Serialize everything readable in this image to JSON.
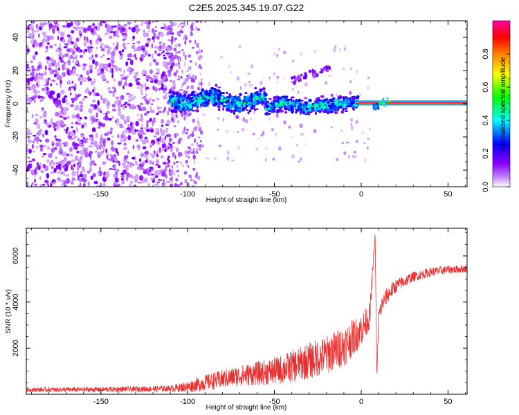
{
  "figure": {
    "title": "C2E5.2025.345.19.07.G22"
  },
  "chart_data": [
    {
      "type": "heatmap",
      "xlabel": "Height of straight line (km)",
      "ylabel": "Frequency (Hz)",
      "xlim": [
        -193,
        61
      ],
      "ylim": [
        -50,
        50
      ],
      "xticks": [
        -150,
        -100,
        -50,
        0,
        50
      ],
      "yticks": [
        -40,
        -20,
        0,
        20,
        40
      ],
      "xtick_labels": [
        "-150",
        "-100",
        "-50",
        "0",
        "50"
      ],
      "ytick_labels": [
        "-40",
        "-20",
        "0",
        "20",
        "40"
      ],
      "colorbar": {
        "label": "Normalized spectral amplitude",
        "range": [
          0,
          1
        ],
        "ticks": [
          0,
          0.2,
          0.4,
          0.6,
          0.8
        ],
        "tick_labels": [
          "0.0",
          "0.2",
          "0.4",
          "0.6",
          "0.8"
        ],
        "colormap": [
          "#ffffff",
          "#8a00ff",
          "#0000ff",
          "#00ffff",
          "#00ff00",
          "#ffff00",
          "#ff8000",
          "#ff0000",
          "#ff00a0"
        ]
      },
      "features": [
        {
          "name": "noise",
          "x_range": [
            -193,
            -108
          ],
          "freq_range": [
            -50,
            50
          ],
          "amplitude": 0.1
        },
        {
          "name": "scattered",
          "x_range": [
            -108,
            -95
          ],
          "freq_range": [
            -50,
            50
          ],
          "amplitude": 0.05
        },
        {
          "name": "signal-band-start",
          "x_range": [
            -110,
            -10
          ],
          "freq_center": 0,
          "amplitude": 0.35
        },
        {
          "name": "harmonic",
          "x_range": [
            -40,
            -18
          ],
          "freq": [
            14,
            22
          ],
          "amplitude": 0.15
        },
        {
          "name": "steady-line",
          "x_range": [
            -2,
            61
          ],
          "freq_center": 0.5,
          "amplitude": 0.95
        },
        {
          "name": "dip",
          "x": 8,
          "freq": -2,
          "amplitude": 0.3
        }
      ]
    },
    {
      "type": "line",
      "xlabel": "Height of straight line (km)",
      "ylabel": "SNR (10 * v/v)",
      "xlim": [
        -193,
        61
      ],
      "ylim": [
        0,
        7200
      ],
      "xticks": [
        -150,
        -100,
        -50,
        0,
        50
      ],
      "yticks": [
        2000,
        4000,
        6000
      ],
      "xtick_labels": [
        "-150",
        "-100",
        "-50",
        "0",
        "50"
      ],
      "ytick_labels": [
        "2000",
        "4000",
        "6000"
      ],
      "color": "#e83030",
      "series": [
        {
          "x": [
            -193,
            -160,
            -130,
            -110,
            -100,
            -90,
            -80,
            -70,
            -60,
            -50,
            -40,
            -30,
            -20,
            -10,
            0,
            5,
            8,
            9,
            10,
            12,
            15,
            20,
            30,
            40,
            50,
            61
          ],
          "y": [
            200,
            200,
            220,
            250,
            320,
            500,
            650,
            800,
            900,
            1000,
            1200,
            1450,
            1700,
            2100,
            2800,
            3400,
            7000,
            700,
            3300,
            3900,
            4300,
            4700,
            5100,
            5300,
            5400,
            5450
          ],
          "noise": [
            100,
            110,
            120,
            140,
            240,
            350,
            400,
            450,
            520,
            600,
            700,
            800,
            850,
            900,
            700,
            600,
            0,
            0,
            450,
            400,
            350,
            300,
            220,
            200,
            180,
            170
          ]
        }
      ]
    }
  ]
}
